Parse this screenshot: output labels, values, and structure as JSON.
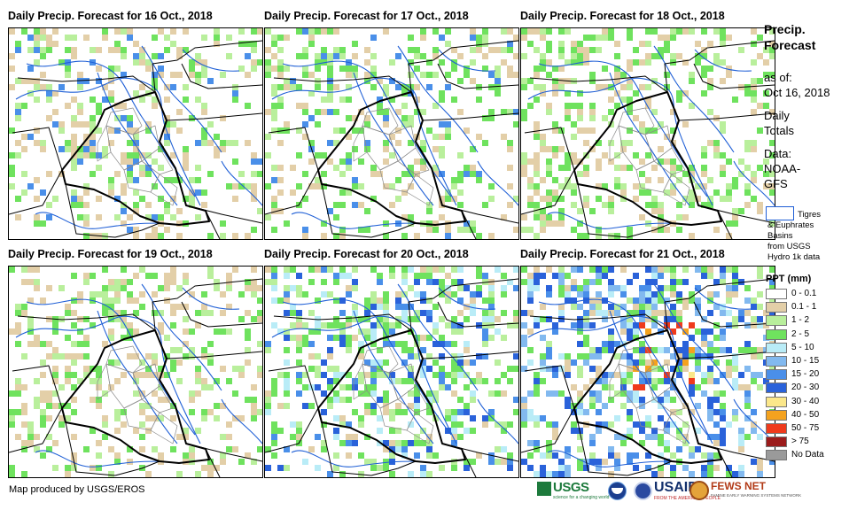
{
  "panels": [
    {
      "title": "Daily Precip. Forecast for 16 Oct., 2018",
      "day": 0
    },
    {
      "title": "Daily Precip. Forecast for 17 Oct., 2018",
      "day": 1
    },
    {
      "title": "Daily Precip. Forecast for 18 Oct., 2018",
      "day": 2
    },
    {
      "title": "Daily Precip. Forecast for 19 Oct., 2018",
      "day": 3
    },
    {
      "title": "Daily Precip. Forecast for 20 Oct., 2018",
      "day": 4
    },
    {
      "title": "Daily Precip. Forecast for 21 Oct., 2018",
      "day": 5
    }
  ],
  "side": {
    "title_line1": "Precip.",
    "title_line2": "Forecast",
    "asof_label": "as of:",
    "asof_date": "Oct 16, 2018",
    "totals_line1": "Daily",
    "totals_line2": "Totals",
    "data_line1": "Data:",
    "data_line2": "NOAA-",
    "data_line3": "GFS"
  },
  "basin_key": {
    "line1": "Tigres",
    "line2": "& Euphrates",
    "line3": "Basins",
    "line4": "from USGS",
    "line5": "Hydro 1k data",
    "color": "#1f5fd6"
  },
  "legend": {
    "title": "PPT (mm)",
    "items": [
      {
        "label": "0 - 0.1",
        "color": "#ffffff"
      },
      {
        "label": "0.1 - 1",
        "color": "#e3cfa8"
      },
      {
        "label": "1 - 2",
        "color": "#b9ef9c"
      },
      {
        "label": "2 - 5",
        "color": "#6fe25e"
      },
      {
        "label": "5 - 10",
        "color": "#b9ecf7"
      },
      {
        "label": "10 - 15",
        "color": "#82b9ef"
      },
      {
        "label": "15 - 20",
        "color": "#4a8fe9"
      },
      {
        "label": "20 - 30",
        "color": "#2a62da"
      },
      {
        "label": "30 - 40",
        "color": "#fbe78a"
      },
      {
        "label": "40 - 50",
        "color": "#f4a21e"
      },
      {
        "label": "50 - 75",
        "color": "#ef3a1c"
      },
      {
        "label": "> 75",
        "color": "#9b1b1b"
      },
      {
        "label": "No Data",
        "color": "#9a9a9a"
      }
    ]
  },
  "credit": "Map produced by USGS/EROS",
  "logos": {
    "usgs": "USGS",
    "usgs_tag": "science for a changing world",
    "usaid": "USAID",
    "usaid_tag": "FROM THE AMERICAN PEOPLE",
    "fews": "FEWS NET",
    "fews_tag": "FAMINE EARLY WARNING SYSTEMS NETWORK"
  }
}
